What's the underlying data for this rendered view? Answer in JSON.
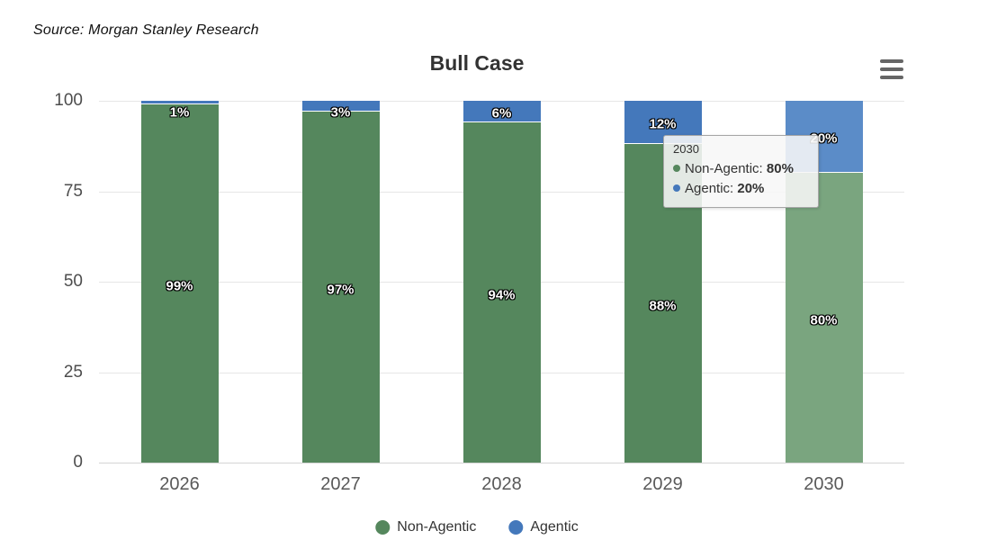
{
  "source_note": "Source: Morgan Stanley Research",
  "chart": {
    "title": "Bull Case",
    "menu_icon": "hamburger-menu"
  },
  "chart_data": {
    "type": "bar",
    "stacked": true,
    "title": "Bull Case",
    "categories": [
      "2026",
      "2027",
      "2028",
      "2029",
      "2030"
    ],
    "series": [
      {
        "name": "Non-Agentic",
        "color": "#55875d",
        "hover_color": "#7aa57f",
        "values": [
          99,
          97,
          94,
          88,
          80
        ]
      },
      {
        "name": "Agentic",
        "color": "#4478bb",
        "hover_color": "#5b8cc8",
        "values": [
          1,
          3,
          6,
          12,
          20
        ]
      }
    ],
    "value_suffix": "%",
    "ylim": [
      0,
      100
    ],
    "yticks": [
      0,
      25,
      50,
      75,
      100
    ],
    "grid": true,
    "legend_position": "bottom",
    "highlighted_category": "2030"
  },
  "tooltip": {
    "header": "2030",
    "rows": [
      {
        "label": "Non-Agentic",
        "value": "80%",
        "color": "#55875d"
      },
      {
        "label": "Agentic",
        "value": "20%",
        "color": "#4478bb"
      }
    ]
  },
  "legend": {
    "items": [
      {
        "label": "Non-Agentic",
        "color": "#55875d"
      },
      {
        "label": "Agentic",
        "color": "#4478bb"
      }
    ]
  }
}
